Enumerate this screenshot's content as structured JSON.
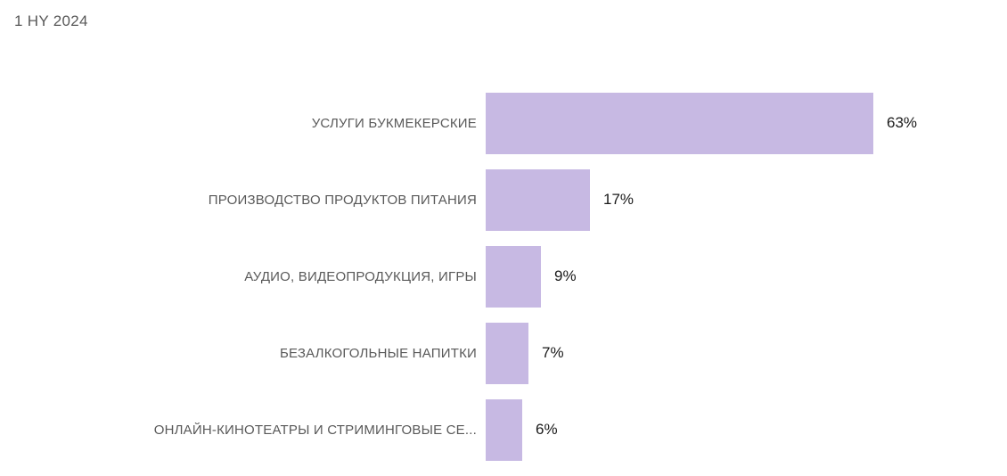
{
  "chart_data": {
    "type": "bar",
    "orientation": "horizontal",
    "title": "1 HY 2024",
    "categories": [
      "УСЛУГИ БУКМЕКЕРСКИЕ",
      "ПРОИЗВОДСТВО ПРОДУКТОВ ПИТАНИЯ",
      "АУДИО, ВИДЕОПРОДУКЦИЯ, ИГРЫ",
      "БЕЗАЛКОГОЛЬНЫЕ НАПИТКИ",
      "ОНЛАЙН-КИНОТЕАТРЫ И СТРИМИНГОВЫЕ СЕ..."
    ],
    "values": [
      63,
      17,
      9,
      7,
      6
    ],
    "value_suffix": "%",
    "xlabel": "",
    "ylabel": "",
    "xlim": [
      0,
      63
    ],
    "grid": false,
    "legend": false,
    "data_labels": "outside-end",
    "bar_color": "#c7b9e3",
    "label_color": "#595959",
    "value_color": "#1a1a1a"
  }
}
